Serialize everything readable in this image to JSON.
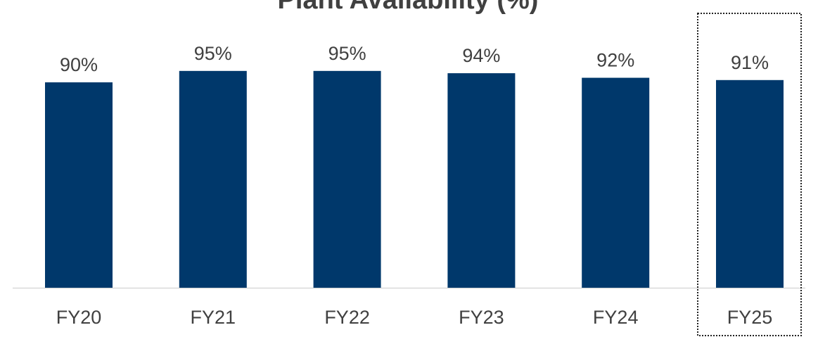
{
  "chart_data": {
    "type": "bar",
    "title": "Plant Availability (%)",
    "categories": [
      "FY20",
      "FY21",
      "FY22",
      "FY23",
      "FY24",
      "FY25"
    ],
    "values": [
      90,
      95,
      95,
      94,
      92,
      91
    ],
    "value_labels": [
      "90%",
      "95%",
      "95%",
      "94%",
      "92%",
      "91%"
    ],
    "color": "#00386b"
  }
}
